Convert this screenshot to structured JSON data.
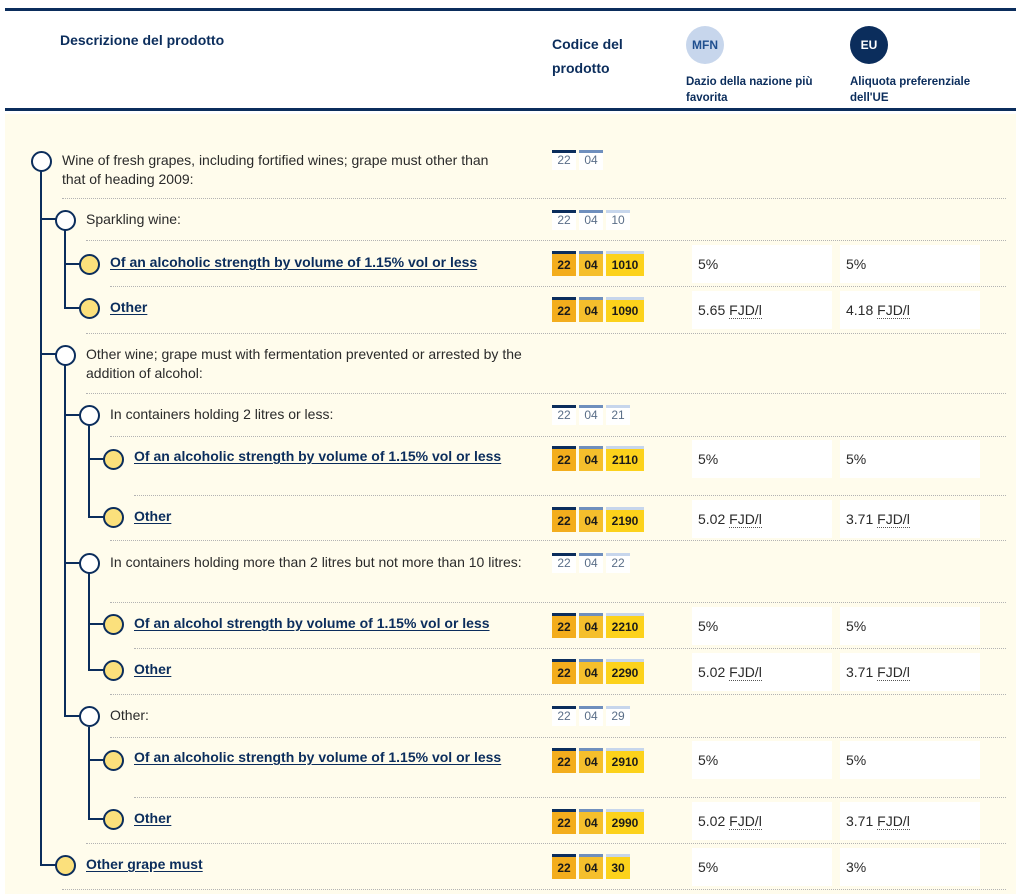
{
  "header": {
    "desc_label": "Descrizione del prodotto",
    "code_label": "Codice del prodotto",
    "mfn_badge": "MFN",
    "mfn_label": "Dazio della nazione più favorita",
    "eu_badge": "EU",
    "eu_label": "Aliquota preferenziale dell'UE"
  },
  "rows": [
    {
      "desc": "Wine of fresh grapes, including fortified wines; grape must other than that of heading 2009:",
      "code": [
        "22",
        "04"
      ]
    },
    {
      "desc": "Sparkling wine:",
      "code": [
        "22",
        "04",
        "10"
      ]
    },
    {
      "desc": "Of an alcoholic strength by volume of 1.15% vol or less",
      "code": [
        "22",
        "04",
        "1010"
      ],
      "mfn": "5%",
      "eu": "5%"
    },
    {
      "desc": "Other",
      "code": [
        "22",
        "04",
        "1090"
      ],
      "mfn_value": "5.65",
      "mfn_unit": "FJD/l",
      "eu_value": "4.18",
      "eu_unit": "FJD/l"
    },
    {
      "desc": "Other wine; grape must with fermentation prevented or arrested by the addition of alcohol:"
    },
    {
      "desc": "In containers holding 2 litres or less:",
      "code": [
        "22",
        "04",
        "21"
      ]
    },
    {
      "desc": "Of an alcoholic strength by volume of 1.15% vol or less",
      "code": [
        "22",
        "04",
        "2110"
      ],
      "mfn": "5%",
      "eu": "5%"
    },
    {
      "desc": "Other",
      "code": [
        "22",
        "04",
        "2190"
      ],
      "mfn_value": "5.02",
      "mfn_unit": "FJD/l",
      "eu_value": "3.71",
      "eu_unit": "FJD/l"
    },
    {
      "desc": "In containers holding more than 2 litres but not more than 10 litres:",
      "code": [
        "22",
        "04",
        "22"
      ]
    },
    {
      "desc": "Of an alcohol strength by volume of 1.15% vol or less",
      "code": [
        "22",
        "04",
        "2210"
      ],
      "mfn": "5%",
      "eu": "5%"
    },
    {
      "desc": "Other",
      "code": [
        "22",
        "04",
        "2290"
      ],
      "mfn_value": "5.02",
      "mfn_unit": "FJD/l",
      "eu_value": "3.71",
      "eu_unit": "FJD/l"
    },
    {
      "desc": "Other:",
      "code": [
        "22",
        "04",
        "29"
      ]
    },
    {
      "desc": "Of an alcoholic strength by volume of 1.15% vol or less",
      "code": [
        "22",
        "04",
        "2910"
      ],
      "mfn": "5%",
      "eu": "5%"
    },
    {
      "desc": "Other",
      "code": [
        "22",
        "04",
        "2990"
      ],
      "mfn_value": "5.02",
      "mfn_unit": "FJD/l",
      "eu_value": "3.71",
      "eu_unit": "FJD/l"
    },
    {
      "desc": "Other grape must",
      "code": [
        "22",
        "04",
        "30"
      ],
      "mfn": "5%",
      "eu": "3%"
    }
  ]
}
